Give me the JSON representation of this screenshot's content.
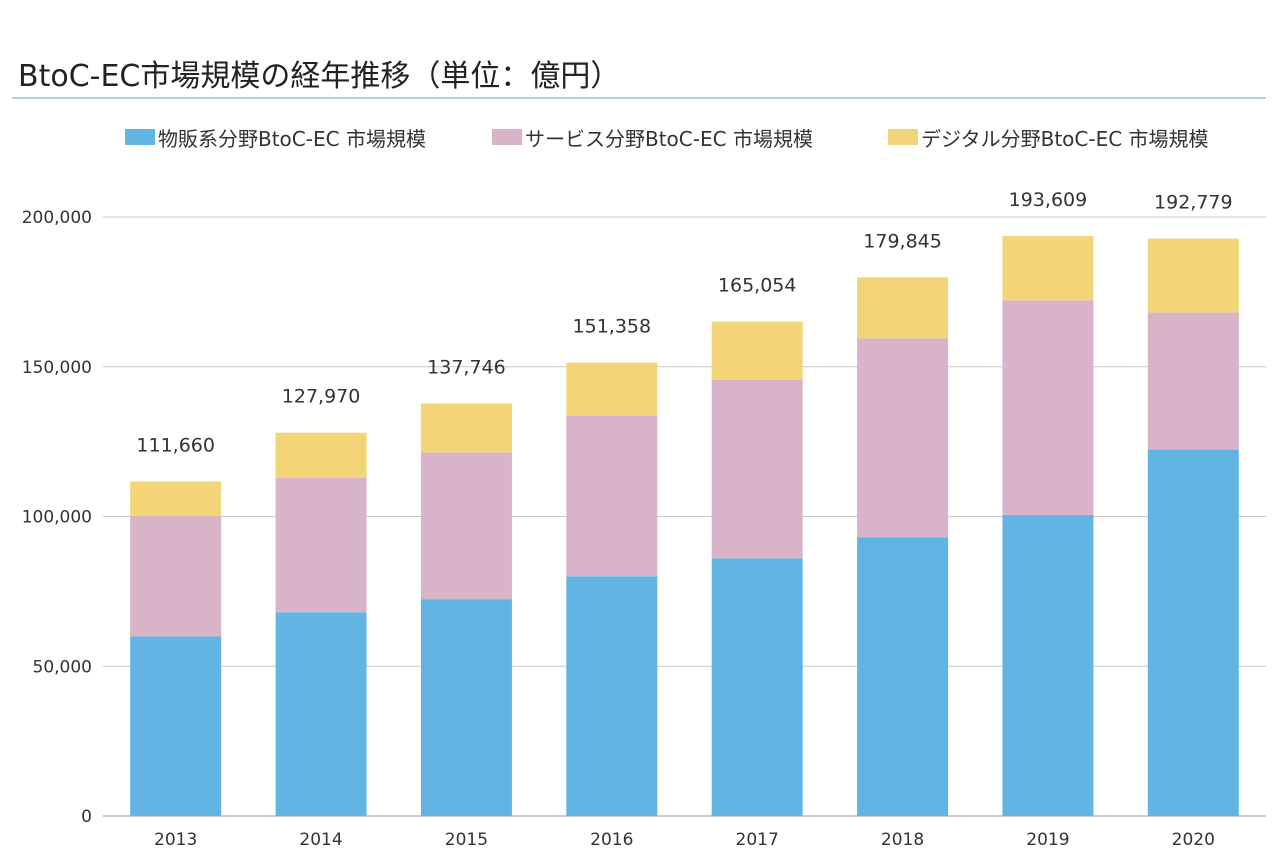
{
  "chart_data": {
    "type": "bar",
    "stacked": true,
    "title": "BtoC-EC市場規模の経年推移（単位：億円）",
    "categories": [
      "2013",
      "2014",
      "2015",
      "2016",
      "2017",
      "2018",
      "2019",
      "2020"
    ],
    "series": [
      {
        "name": "物販系分野BtoC-EC 市場規模",
        "color": "#62B5E3",
        "values": [
          59931,
          68043,
          72398,
          80043,
          86008,
          92992,
          100515,
          122333
        ]
      },
      {
        "name": "サービス分野BtoC-EC 市場規模",
        "color": "#D9B3C8",
        "values": [
          40202,
          44816,
          49014,
          53532,
          59568,
          66471,
          71672,
          45832
        ]
      },
      {
        "name": "デジタル分野BtoC-EC 市場規模",
        "color": "#F3D577",
        "values": [
          11527,
          15111,
          16334,
          17782,
          19478,
          20382,
          21422,
          24614
        ]
      }
    ],
    "totals": [
      "111,660",
      "127,970",
      "137,746",
      "151,358",
      "165,054",
      "179,845",
      "193,609",
      "192,779"
    ],
    "ylim": [
      0,
      200000
    ],
    "yticks": [
      0,
      50000,
      100000,
      150000,
      200000
    ],
    "ytick_labels": [
      "0",
      "50,000",
      "100,000",
      "150,000",
      "200,000"
    ],
    "xlabel": "",
    "ylabel": "",
    "grid": true,
    "legend_position": "top"
  },
  "colors": {
    "title_rule": "#A9D3EC",
    "grid": "#C8C8C8",
    "axis": "#999999"
  }
}
